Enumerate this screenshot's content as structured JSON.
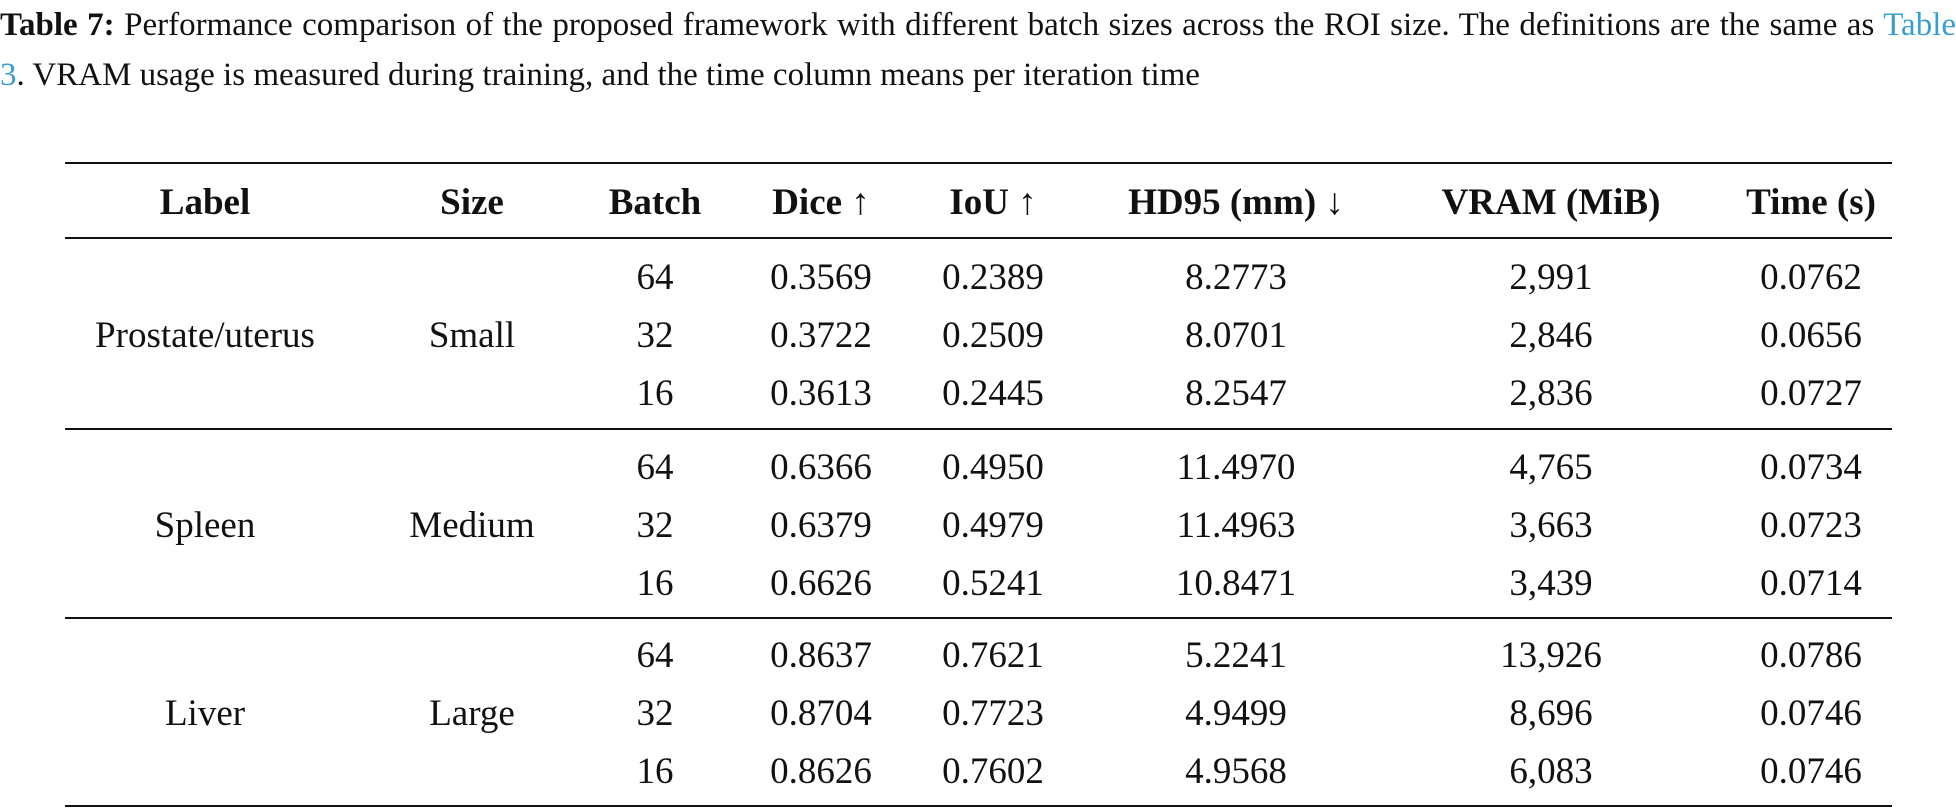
{
  "caption": {
    "label": "Table 7:",
    "text_before": "Performance comparison of the proposed framework with different batch sizes across the ROI size. The definitions are the same as",
    "link": "Table 3",
    "text_after": ". VRAM usage is measured during training, and the time column means per iteration time"
  },
  "table": {
    "headers": [
      "Label",
      "Size",
      "Batch",
      "Dice ↑",
      "IoU ↑",
      "HD95 (mm) ↓",
      "VRAM (MiB)",
      "Time (s)"
    ],
    "groups": [
      {
        "label": "Prostate/uterus",
        "size": "Small",
        "rows": [
          [
            "64",
            "0.3569",
            "0.2389",
            "8.2773",
            "2,991",
            "0.0762"
          ],
          [
            "32",
            "0.3722",
            "0.2509",
            "8.0701",
            "2,846",
            "0.0656"
          ],
          [
            "16",
            "0.3613",
            "0.2445",
            "8.2547",
            "2,836",
            "0.0727"
          ]
        ]
      },
      {
        "label": "Spleen",
        "size": "Medium",
        "rows": [
          [
            "64",
            "0.6366",
            "0.4950",
            "11.4970",
            "4,765",
            "0.0734"
          ],
          [
            "32",
            "0.6379",
            "0.4979",
            "11.4963",
            "3,663",
            "0.0723"
          ],
          [
            "16",
            "0.6626",
            "0.5241",
            "10.8471",
            "3,439",
            "0.0714"
          ]
        ]
      },
      {
        "label": "Liver",
        "size": "Large",
        "rows": [
          [
            "64",
            "0.8637",
            "0.7621",
            "5.2241",
            "13,926",
            "0.0786"
          ],
          [
            "32",
            "0.8704",
            "0.7723",
            "4.9499",
            "8,696",
            "0.0746"
          ],
          [
            "16",
            "0.8626",
            "0.7602",
            "4.9568",
            "6,083",
            "0.0746"
          ]
        ]
      }
    ]
  }
}
